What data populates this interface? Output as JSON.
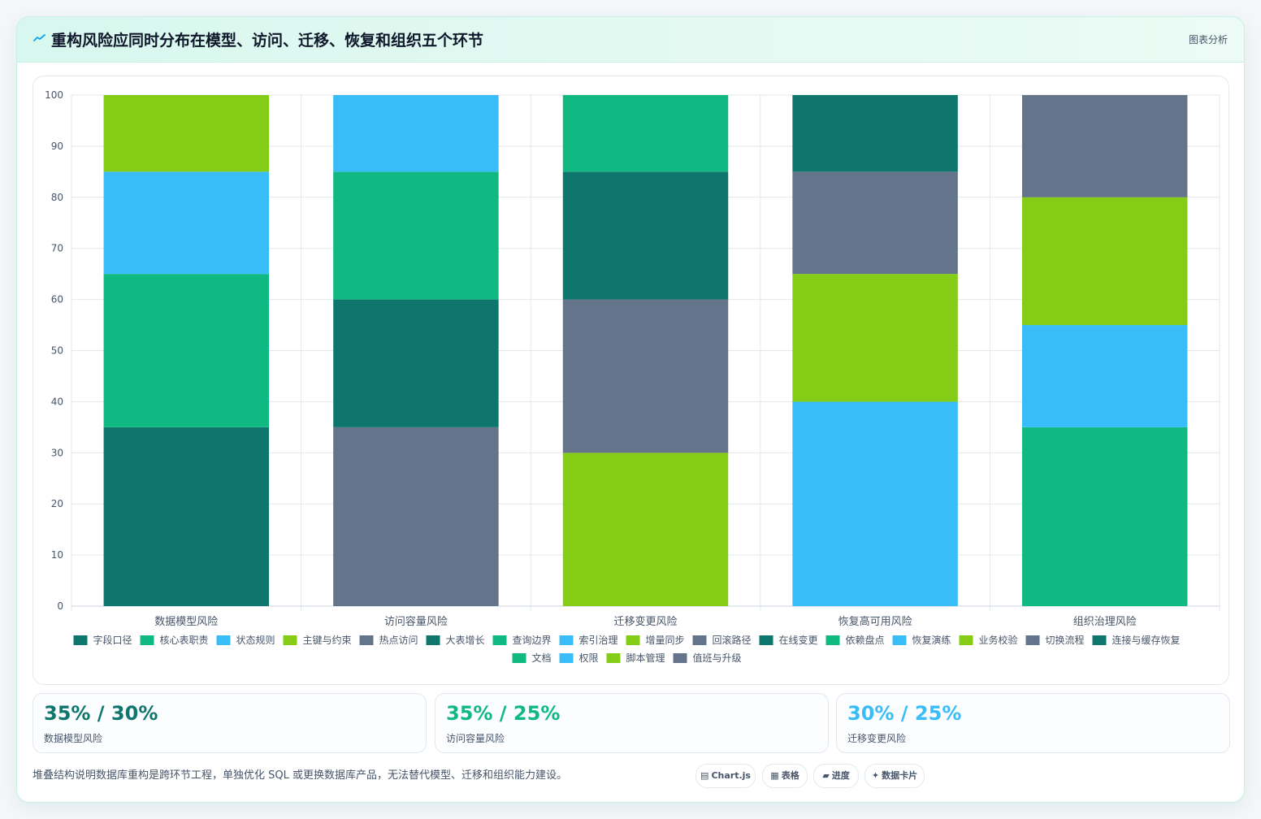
{
  "header": {
    "title": "重构风险应同时分布在模型、访问、迁移、恢复和组织五个环节",
    "action_label": "图表分析"
  },
  "chart_data": {
    "type": "bar",
    "stacked": true,
    "categories": [
      "数据模型风险",
      "访问容量风险",
      "迁移变更风险",
      "恢复高可用风险",
      "组织治理风险"
    ],
    "ylim": [
      0,
      100
    ],
    "yticks": [
      0,
      10,
      20,
      30,
      40,
      50,
      60,
      70,
      80,
      90,
      100
    ],
    "grid": true,
    "legend_position": "bottom",
    "series": [
      {
        "name": "字段口径",
        "color": "#0f766e",
        "values": [
          35,
          0,
          0,
          0,
          0
        ]
      },
      {
        "name": "核心表职责",
        "color": "#10b981",
        "values": [
          30,
          0,
          0,
          0,
          0
        ]
      },
      {
        "name": "状态规则",
        "color": "#38bdf8",
        "values": [
          20,
          0,
          0,
          0,
          0
        ]
      },
      {
        "name": "主键与约束",
        "color": "#84cc16",
        "values": [
          15,
          0,
          0,
          0,
          0
        ]
      },
      {
        "name": "热点访问",
        "color": "#64748b",
        "values": [
          0,
          35,
          0,
          0,
          0
        ]
      },
      {
        "name": "大表增长",
        "color": "#0f766e",
        "values": [
          0,
          25,
          0,
          0,
          0
        ]
      },
      {
        "name": "查询边界",
        "color": "#10b981",
        "values": [
          0,
          25,
          0,
          0,
          0
        ]
      },
      {
        "name": "索引治理",
        "color": "#38bdf8",
        "values": [
          0,
          15,
          0,
          0,
          0
        ]
      },
      {
        "name": "增量同步",
        "color": "#84cc16",
        "values": [
          0,
          0,
          30,
          0,
          0
        ]
      },
      {
        "name": "回滚路径",
        "color": "#64748b",
        "values": [
          0,
          0,
          30,
          0,
          0
        ]
      },
      {
        "name": "在线变更",
        "color": "#0f766e",
        "values": [
          0,
          0,
          25,
          0,
          0
        ]
      },
      {
        "name": "依赖盘点",
        "color": "#10b981",
        "values": [
          0,
          0,
          15,
          0,
          0
        ]
      },
      {
        "name": "恢复演练",
        "color": "#38bdf8",
        "values": [
          0,
          0,
          0,
          40,
          0
        ]
      },
      {
        "name": "业务校验",
        "color": "#84cc16",
        "values": [
          0,
          0,
          0,
          25,
          0
        ]
      },
      {
        "name": "切换流程",
        "color": "#64748b",
        "values": [
          0,
          0,
          0,
          20,
          0
        ]
      },
      {
        "name": "连接与缓存恢复",
        "color": "#0f766e",
        "values": [
          0,
          0,
          0,
          15,
          0
        ]
      },
      {
        "name": "文档",
        "color": "#10b981",
        "values": [
          0,
          0,
          0,
          0,
          35
        ]
      },
      {
        "name": "权限",
        "color": "#38bdf8",
        "values": [
          0,
          0,
          0,
          0,
          20
        ]
      },
      {
        "name": "脚本管理",
        "color": "#84cc16",
        "values": [
          0,
          0,
          0,
          0,
          25
        ]
      },
      {
        "name": "值班与升级",
        "color": "#64748b",
        "values": [
          0,
          0,
          0,
          0,
          20
        ]
      }
    ]
  },
  "stats": [
    {
      "value": "35% / 30%",
      "label": "数据模型风险",
      "color": "#0f766e"
    },
    {
      "value": "35% / 25%",
      "label": "访问容量风险",
      "color": "#10b981"
    },
    {
      "value": "30% / 25%",
      "label": "迁移变更风险",
      "color": "#38bdf8"
    }
  ],
  "footer": {
    "note": "堆叠结构说明数据库重构是跨环节工程，单独优化 SQL 或更换数据库产品，无法替代模型、迁移和组织能力建设。",
    "pills": [
      {
        "icon": "chart-icon",
        "label": "Chart.js"
      },
      {
        "icon": "table-icon",
        "label": "表格"
      },
      {
        "icon": "progress-icon",
        "label": "进度"
      },
      {
        "icon": "sparkle-icon",
        "label": "数据卡片"
      }
    ]
  }
}
